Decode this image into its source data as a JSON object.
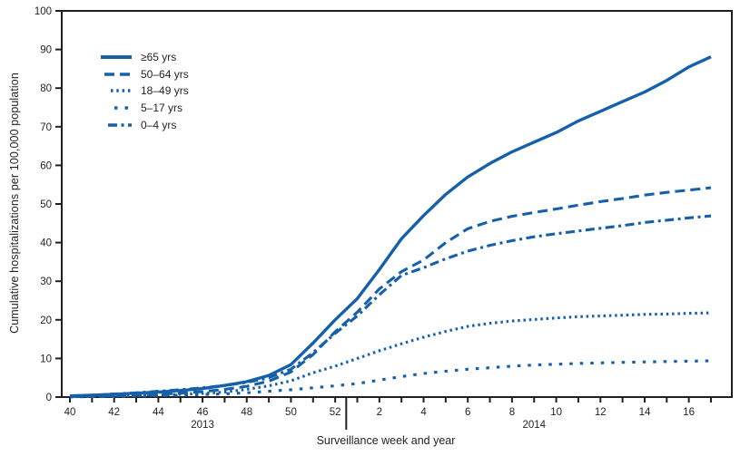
{
  "figure": {
    "y_axis_label": "Cumulative hospitalizations per 100,000 population",
    "x_axis_label": "Surveillance week and year"
  },
  "colors": {
    "line_blue": "#1560a8",
    "axis_black": "#231f20"
  },
  "chart_data": {
    "type": "line",
    "title": "",
    "xlabel": "Surveillance week and year",
    "ylabel": "Cumulative hospitalizations per 100,000 population",
    "ylim": [
      0,
      100
    ],
    "y_ticks": [
      0,
      10,
      20,
      30,
      40,
      50,
      60,
      70,
      80,
      90,
      100
    ],
    "x_weeks": [
      "40",
      "41",
      "42",
      "43",
      "44",
      "45",
      "46",
      "47",
      "48",
      "49",
      "50",
      "51",
      "52",
      "1",
      "2",
      "3",
      "4",
      "5",
      "6",
      "7",
      "8",
      "9",
      "10",
      "11",
      "12",
      "13",
      "14",
      "15",
      "16",
      "17"
    ],
    "x_labeled_weeks": [
      "40",
      "42",
      "44",
      "46",
      "48",
      "50",
      "52",
      "2",
      "4",
      "6",
      "8",
      "10",
      "12",
      "14",
      "16"
    ],
    "year_groups": [
      {
        "label": "2013",
        "weeks": 13
      },
      {
        "label": "2014",
        "weeks": 17
      }
    ],
    "legend_position": "top-left",
    "grid": false,
    "series": [
      {
        "key": "age-65plus",
        "label": "≥65 yrs",
        "dash": "solid",
        "values": [
          0.3,
          0.5,
          0.7,
          1.0,
          1.3,
          1.7,
          2.2,
          3.0,
          4.0,
          5.6,
          8.4,
          14.0,
          20.0,
          25.5,
          33.0,
          41.0,
          47.0,
          52.5,
          57.0,
          60.5,
          63.5,
          66.0,
          68.5,
          71.5,
          74.0,
          76.5,
          79.0,
          82.0,
          85.5,
          88.1
        ]
      },
      {
        "key": "age-50-64",
        "label": "50–64 yrs",
        "dash": "long-dash",
        "values": [
          0.1,
          0.2,
          0.3,
          0.5,
          0.7,
          1.0,
          1.4,
          2.0,
          2.8,
          4.1,
          6.5,
          11.0,
          16.9,
          22.0,
          28.0,
          32.5,
          35.5,
          40.0,
          43.6,
          45.5,
          46.8,
          47.8,
          48.7,
          49.7,
          50.6,
          51.4,
          52.3,
          53.0,
          53.6,
          54.2
        ]
      },
      {
        "key": "age-18-49",
        "label": "18–49 yrs",
        "dash": "dotted",
        "values": [
          0.1,
          0.15,
          0.25,
          0.35,
          0.5,
          0.7,
          0.95,
          1.3,
          2.0,
          2.9,
          4.2,
          6.3,
          8.0,
          10.0,
          12.0,
          13.8,
          15.5,
          17.0,
          18.3,
          19.1,
          19.7,
          20.1,
          20.5,
          20.8,
          21.0,
          21.2,
          21.4,
          21.5,
          21.7,
          21.8
        ]
      },
      {
        "key": "age-5-17",
        "label": "5–17 yrs",
        "dash": "sparse-dash",
        "values": [
          0.05,
          0.1,
          0.15,
          0.25,
          0.35,
          0.5,
          0.65,
          0.85,
          1.1,
          1.5,
          1.9,
          2.4,
          2.9,
          3.5,
          4.4,
          5.3,
          6.1,
          6.7,
          7.2,
          7.6,
          8.0,
          8.3,
          8.5,
          8.7,
          8.85,
          9.0,
          9.1,
          9.2,
          9.3,
          9.4
        ]
      },
      {
        "key": "age-0-4",
        "label": "0–4 yrs",
        "dash": "dash-dot",
        "values": [
          0.3,
          0.5,
          0.8,
          1.1,
          1.5,
          1.9,
          2.4,
          3.0,
          3.8,
          5.0,
          7.2,
          11.5,
          16.5,
          21.0,
          26.5,
          31.5,
          33.5,
          35.8,
          37.8,
          39.3,
          40.5,
          41.5,
          42.3,
          43.0,
          43.7,
          44.4,
          45.2,
          45.8,
          46.4,
          46.9
        ]
      }
    ]
  }
}
